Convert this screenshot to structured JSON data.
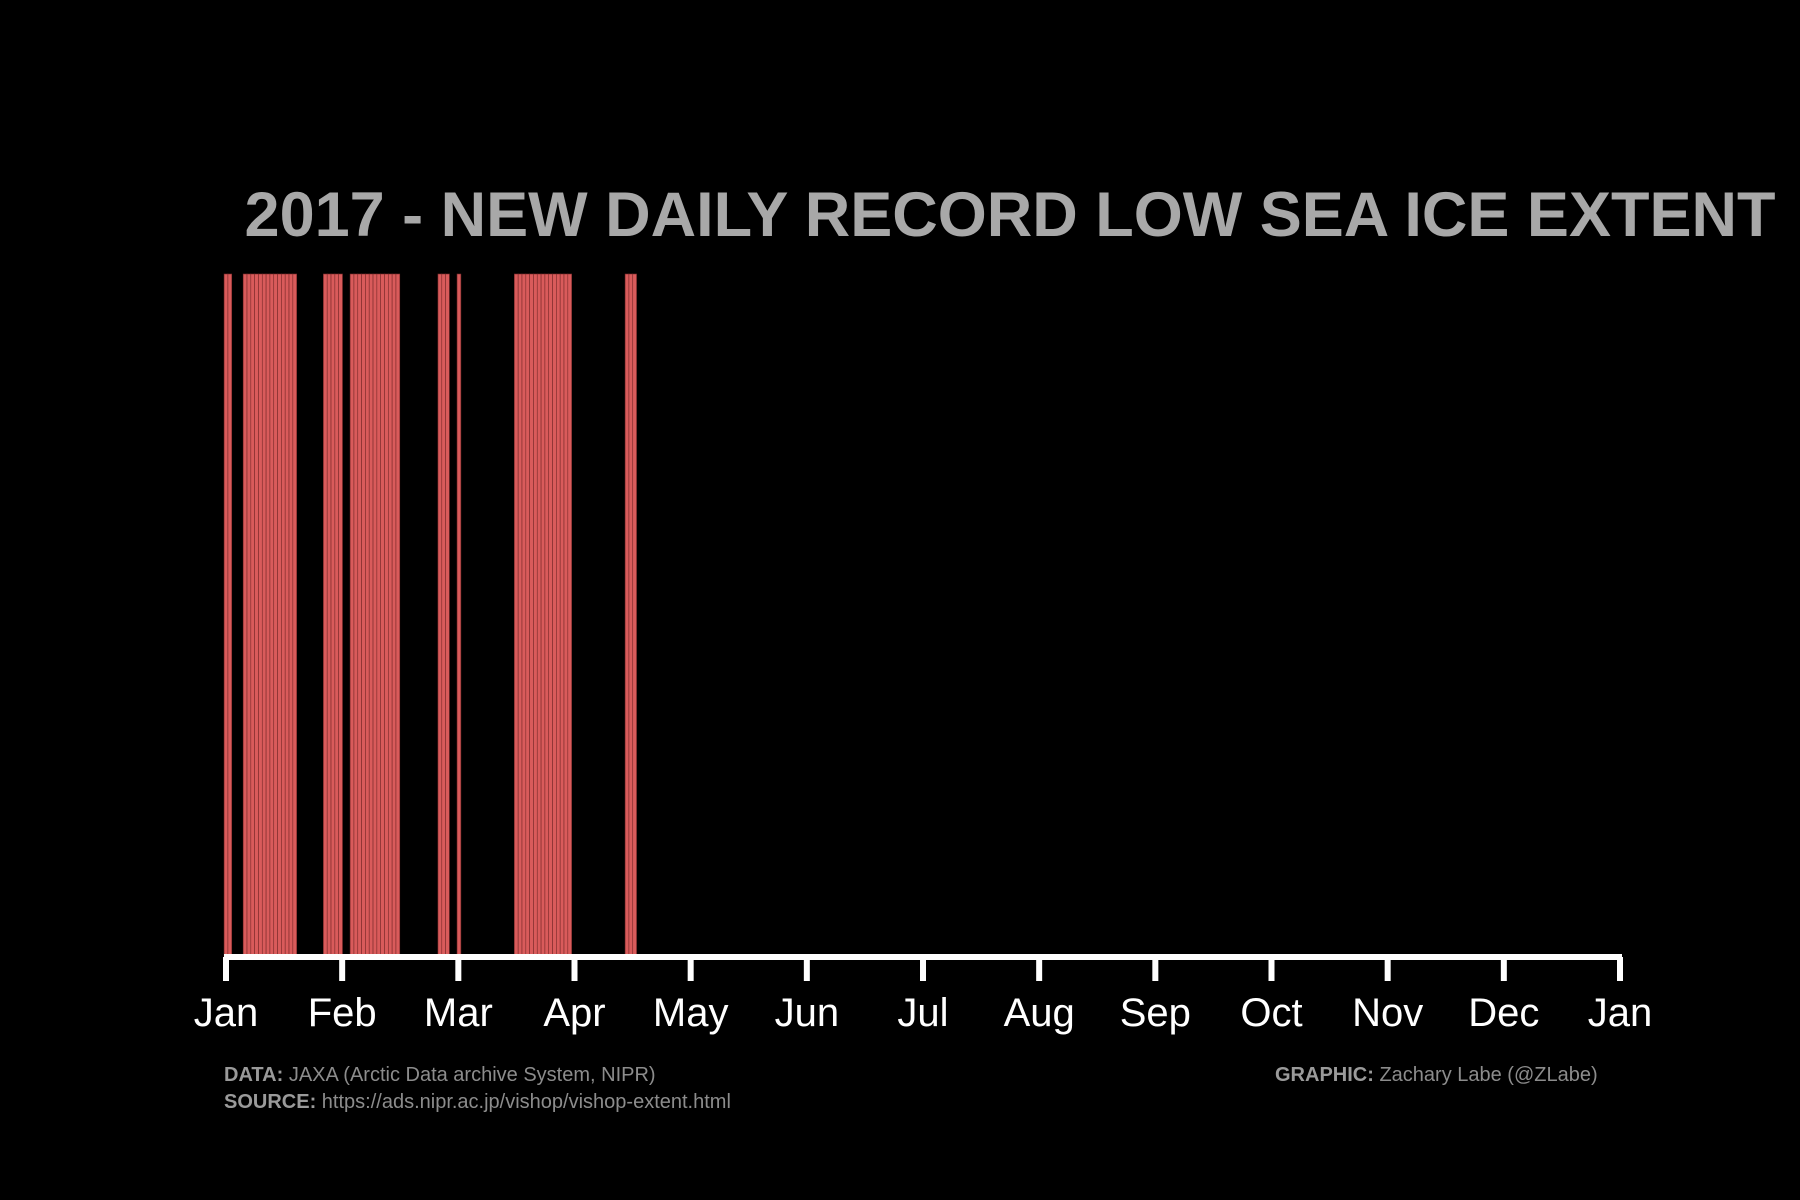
{
  "chart_data": {
    "type": "bar",
    "title": "2017 - NEW DAILY RECORD LOW SEA ICE EXTENT",
    "xlabel": "",
    "ylabel": "",
    "x_ticks": [
      "Jan",
      "Feb",
      "Mar",
      "Apr",
      "May",
      "Jun",
      "Jul",
      "Aug",
      "Sep",
      "Oct",
      "Nov",
      "Dec",
      "Jan"
    ],
    "x_range_days": [
      1,
      366
    ],
    "grid": false,
    "legend": "none",
    "record_low_days": [
      1,
      2,
      6,
      7,
      8,
      9,
      10,
      11,
      12,
      13,
      14,
      15,
      16,
      17,
      18,
      19,
      27,
      28,
      29,
      30,
      31,
      34,
      35,
      36,
      37,
      38,
      39,
      40,
      41,
      42,
      43,
      44,
      45,
      46,
      57,
      58,
      59,
      62,
      77,
      78,
      79,
      80,
      81,
      82,
      83,
      84,
      85,
      86,
      87,
      88,
      89,
      90,
      91,
      106,
      107,
      108
    ],
    "colors": {
      "background": "#000000",
      "bar": "#d95b5b",
      "axis": "#ffffff",
      "title": "#a8a8a8",
      "tick_label": "#ffffff"
    }
  },
  "footer": {
    "data_label": "DATA:",
    "data_value": "JAXA (Arctic Data archive System, NIPR)",
    "source_label": "SOURCE:",
    "source_value": "https://ads.nipr.ac.jp/vishop/vishop-extent.html",
    "graphic_label": "GRAPHIC:",
    "graphic_value": "Zachary Labe (@ZLabe)"
  }
}
